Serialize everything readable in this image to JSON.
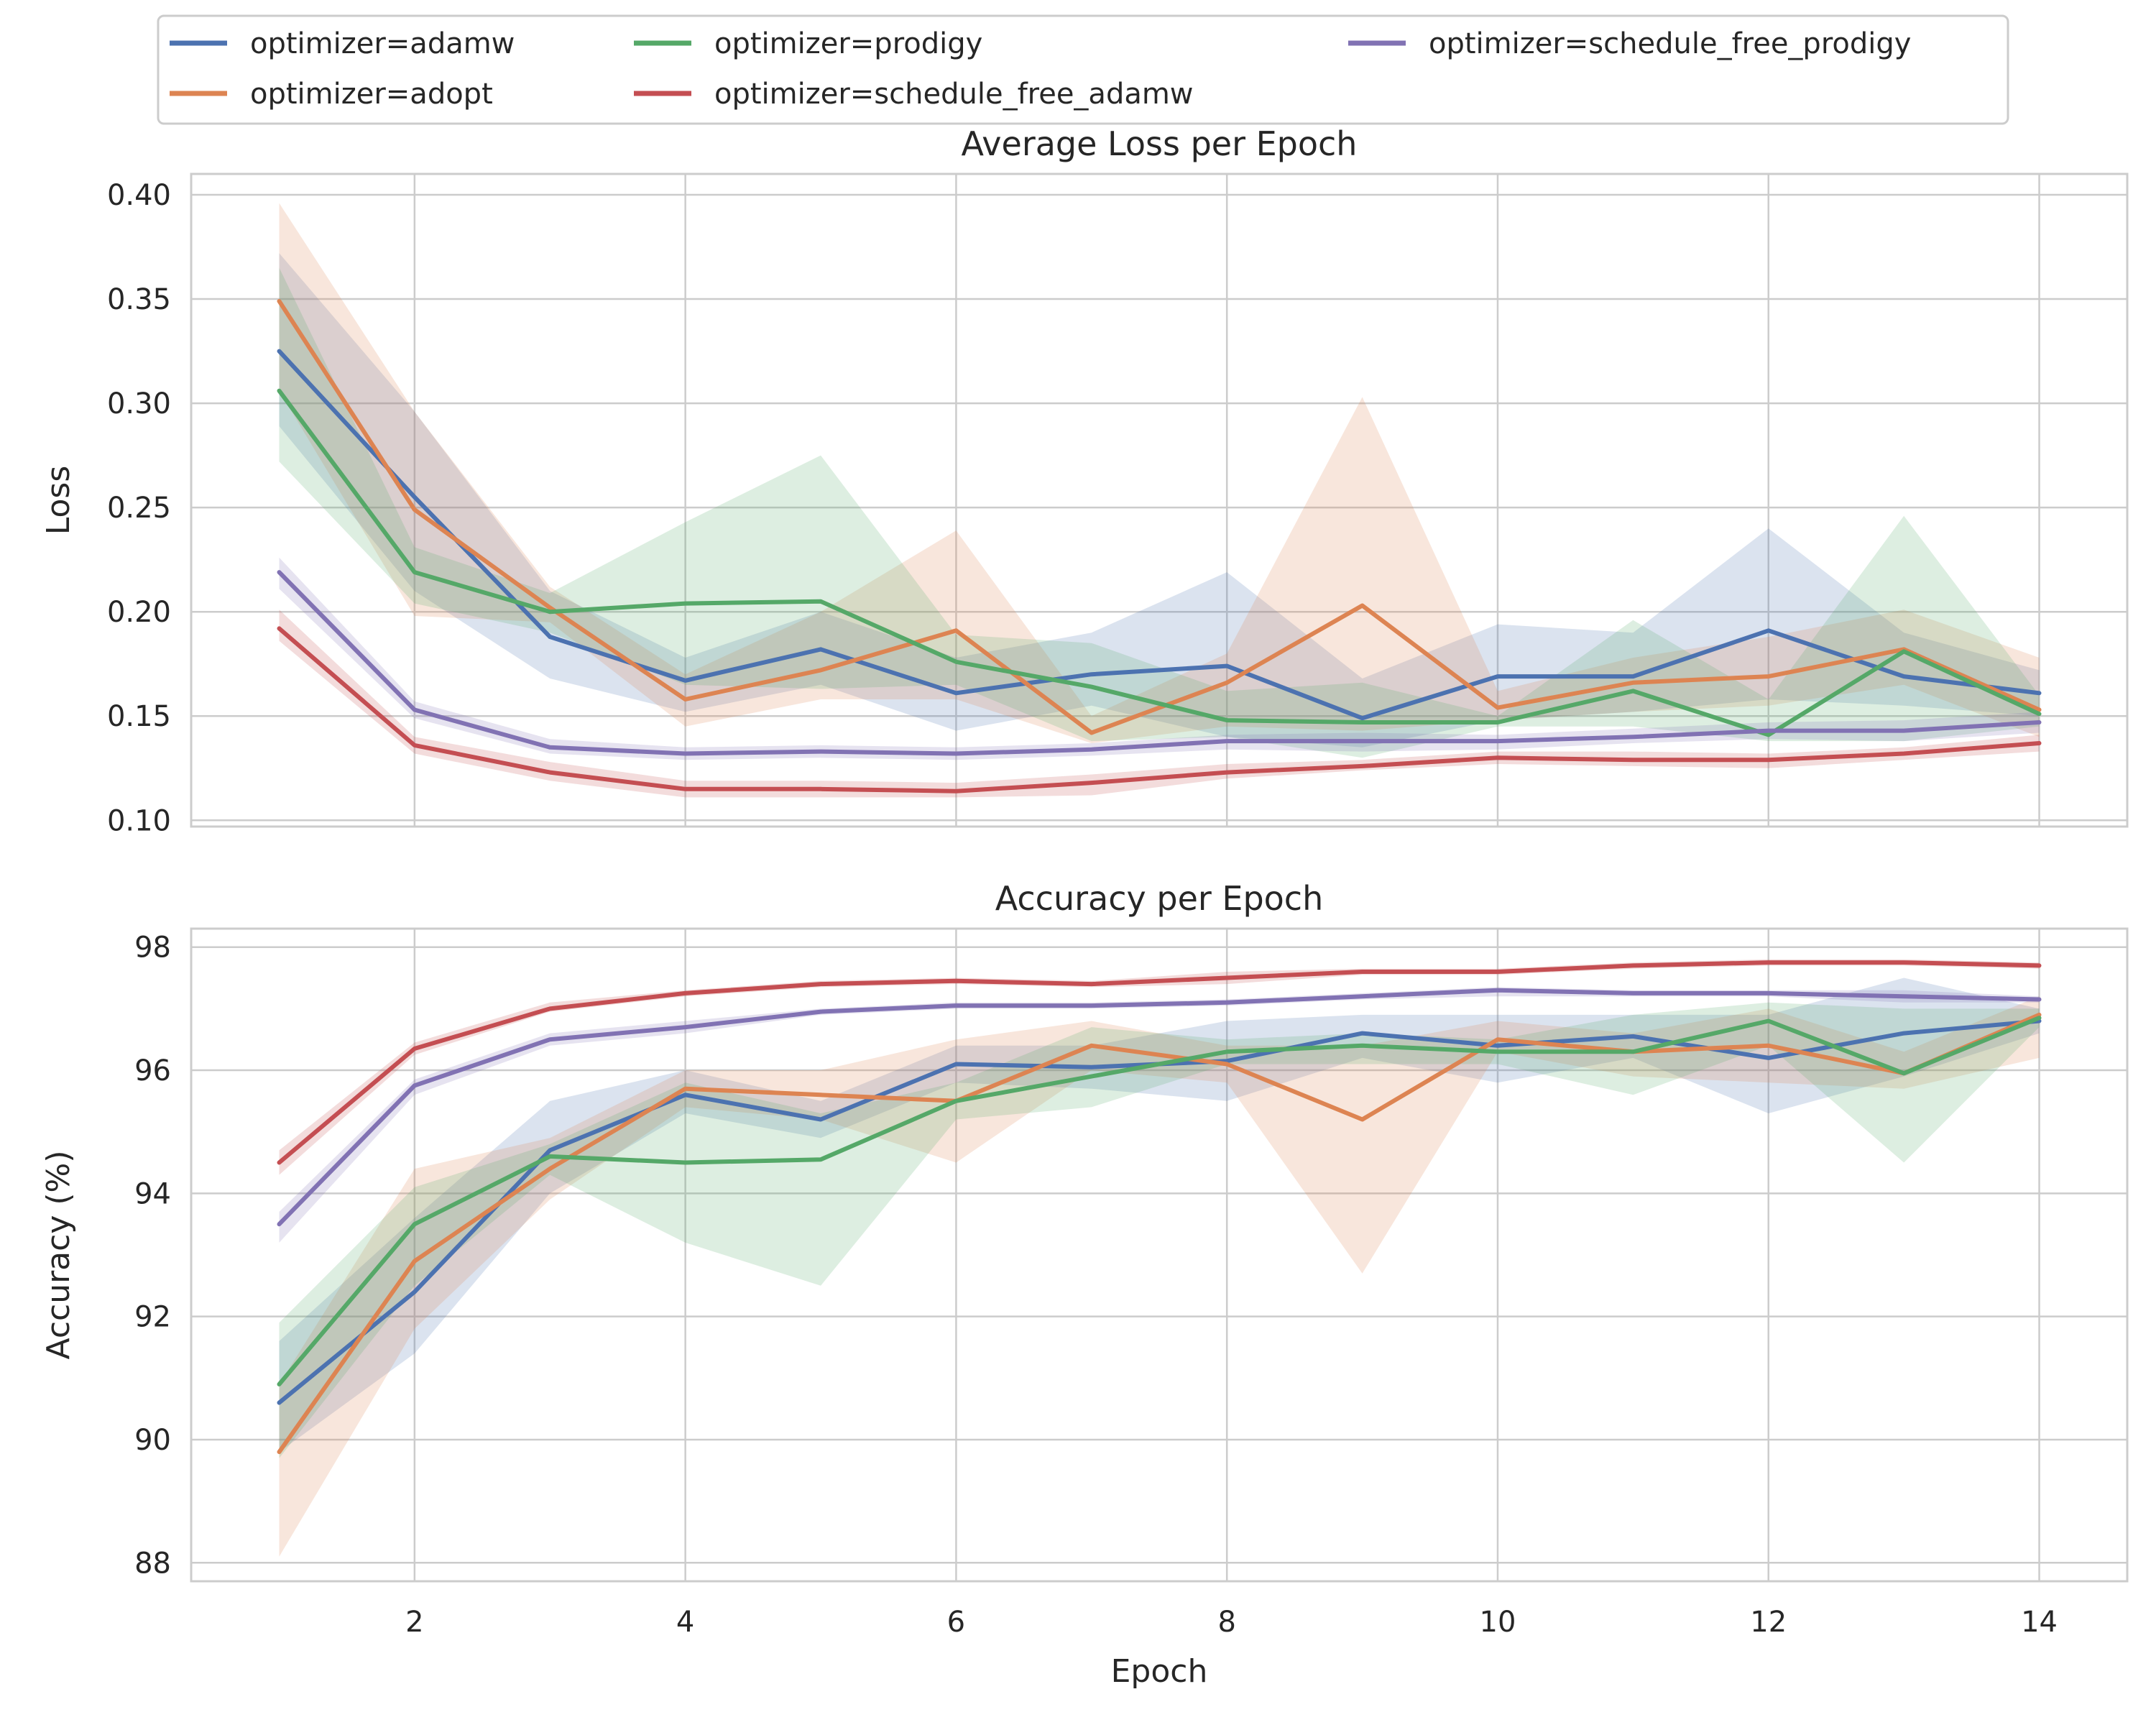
{
  "legend": {
    "placement": "top",
    "entries": [
      {
        "label": "optimizer=adamw",
        "color": "#4c72b0"
      },
      {
        "label": "optimizer=adopt",
        "color": "#dd8452"
      },
      {
        "label": "optimizer=prodigy",
        "color": "#55a868"
      },
      {
        "label": "optimizer=schedule_free_adamw",
        "color": "#c44e52"
      },
      {
        "label": "optimizer=schedule_free_prodigy",
        "color": "#8172b3"
      }
    ]
  },
  "chart_data": [
    {
      "type": "line",
      "title": "Average Loss per Epoch",
      "xlabel": "",
      "ylabel": "Loss",
      "xlim": [
        0.35,
        14.65
      ],
      "ylim": [
        0.097,
        0.41
      ],
      "xticks": [
        2,
        4,
        6,
        8,
        10,
        12,
        14
      ],
      "yticks": [
        0.1,
        0.15,
        0.2,
        0.25,
        0.3,
        0.35,
        0.4
      ],
      "ytick_labels": [
        "0.10",
        "0.15",
        "0.20",
        "0.25",
        "0.30",
        "0.35",
        "0.40"
      ],
      "grid": true,
      "x": [
        1,
        2,
        3,
        4,
        5,
        6,
        7,
        8,
        9,
        10,
        11,
        12,
        13,
        14
      ],
      "series": [
        {
          "name": "optimizer=adamw",
          "color": "#4c72b0",
          "values": [
            0.325,
            0.255,
            0.188,
            0.167,
            0.182,
            0.161,
            0.17,
            0.174,
            0.149,
            0.169,
            0.169,
            0.191,
            0.169,
            0.161
          ],
          "lower": [
            0.289,
            0.21,
            0.168,
            0.152,
            0.165,
            0.143,
            0.155,
            0.14,
            0.135,
            0.148,
            0.152,
            0.158,
            0.155,
            0.15
          ],
          "upper": [
            0.372,
            0.296,
            0.21,
            0.178,
            0.2,
            0.178,
            0.19,
            0.219,
            0.168,
            0.194,
            0.19,
            0.24,
            0.19,
            0.172
          ]
        },
        {
          "name": "optimizer=adopt",
          "color": "#dd8452",
          "values": [
            0.349,
            0.249,
            0.202,
            0.158,
            0.172,
            0.191,
            0.142,
            0.166,
            0.203,
            0.154,
            0.166,
            0.169,
            0.182,
            0.153
          ],
          "lower": [
            0.306,
            0.198,
            0.195,
            0.145,
            0.158,
            0.158,
            0.137,
            0.145,
            0.143,
            0.148,
            0.152,
            0.155,
            0.165,
            0.14
          ],
          "upper": [
            0.396,
            0.296,
            0.212,
            0.17,
            0.2,
            0.239,
            0.15,
            0.18,
            0.303,
            0.162,
            0.178,
            0.188,
            0.201,
            0.178
          ]
        },
        {
          "name": "optimizer=prodigy",
          "color": "#55a868",
          "values": [
            0.306,
            0.219,
            0.2,
            0.204,
            0.205,
            0.176,
            0.164,
            0.148,
            0.147,
            0.147,
            0.162,
            0.141,
            0.181,
            0.151
          ],
          "lower": [
            0.272,
            0.204,
            0.19,
            0.165,
            0.163,
            0.165,
            0.138,
            0.14,
            0.13,
            0.145,
            0.145,
            0.138,
            0.138,
            0.145
          ],
          "upper": [
            0.365,
            0.231,
            0.209,
            0.243,
            0.275,
            0.189,
            0.185,
            0.162,
            0.166,
            0.15,
            0.196,
            0.158,
            0.246,
            0.16
          ]
        },
        {
          "name": "optimizer=schedule_free_adamw",
          "color": "#c44e52",
          "values": [
            0.192,
            0.136,
            0.123,
            0.115,
            0.115,
            0.114,
            0.118,
            0.123,
            0.126,
            0.13,
            0.129,
            0.129,
            0.132,
            0.137
          ],
          "lower": [
            0.186,
            0.132,
            0.119,
            0.111,
            0.111,
            0.111,
            0.112,
            0.12,
            0.124,
            0.127,
            0.126,
            0.125,
            0.129,
            0.133
          ],
          "upper": [
            0.201,
            0.14,
            0.128,
            0.119,
            0.119,
            0.118,
            0.122,
            0.127,
            0.129,
            0.133,
            0.133,
            0.132,
            0.135,
            0.141
          ]
        },
        {
          "name": "optimizer=schedule_free_prodigy",
          "color": "#8172b3",
          "values": [
            0.219,
            0.153,
            0.135,
            0.132,
            0.133,
            0.132,
            0.134,
            0.138,
            0.138,
            0.138,
            0.14,
            0.143,
            0.143,
            0.147
          ],
          "lower": [
            0.211,
            0.149,
            0.132,
            0.129,
            0.13,
            0.129,
            0.131,
            0.134,
            0.133,
            0.134,
            0.137,
            0.139,
            0.138,
            0.142
          ],
          "upper": [
            0.226,
            0.157,
            0.139,
            0.135,
            0.136,
            0.135,
            0.137,
            0.141,
            0.142,
            0.141,
            0.144,
            0.147,
            0.148,
            0.152
          ]
        }
      ]
    },
    {
      "type": "line",
      "title": "Accuracy per Epoch",
      "xlabel": "Epoch",
      "ylabel": "Accuracy (%)",
      "xlim": [
        0.35,
        14.65
      ],
      "ylim": [
        87.7,
        98.3
      ],
      "xticks": [
        2,
        4,
        6,
        8,
        10,
        12,
        14
      ],
      "yticks": [
        88,
        90,
        92,
        94,
        96,
        98
      ],
      "ytick_labels": [
        "88",
        "90",
        "92",
        "94",
        "96",
        "98"
      ],
      "grid": true,
      "x": [
        1,
        2,
        3,
        4,
        5,
        6,
        7,
        8,
        9,
        10,
        11,
        12,
        13,
        14
      ],
      "series": [
        {
          "name": "optimizer=adamw",
          "color": "#4c72b0",
          "values": [
            90.6,
            92.4,
            94.7,
            95.6,
            95.2,
            96.1,
            96.05,
            96.15,
            96.6,
            96.4,
            96.55,
            96.2,
            96.6,
            96.8
          ],
          "lower": [
            89.8,
            91.4,
            94.0,
            95.3,
            94.9,
            95.8,
            95.7,
            95.5,
            96.2,
            95.8,
            96.2,
            95.3,
            95.9,
            96.6
          ],
          "upper": [
            91.6,
            93.6,
            95.5,
            96.0,
            95.5,
            96.4,
            96.4,
            96.8,
            96.9,
            96.9,
            96.9,
            96.9,
            97.5,
            97.0
          ]
        },
        {
          "name": "optimizer=adopt",
          "color": "#dd8452",
          "values": [
            89.8,
            92.9,
            94.4,
            95.7,
            95.6,
            95.5,
            96.4,
            96.1,
            95.2,
            96.5,
            96.3,
            96.4,
            95.95,
            96.9
          ],
          "lower": [
            88.1,
            91.8,
            93.9,
            95.4,
            95.2,
            94.5,
            96.0,
            95.8,
            92.7,
            96.3,
            95.9,
            95.8,
            95.7,
            96.2
          ],
          "upper": [
            90.9,
            94.4,
            94.9,
            96.0,
            96.0,
            96.5,
            96.8,
            96.4,
            96.4,
            96.8,
            96.6,
            97.0,
            96.3,
            97.2
          ]
        },
        {
          "name": "optimizer=prodigy",
          "color": "#55a868",
          "values": [
            90.9,
            93.5,
            94.6,
            94.5,
            94.55,
            95.5,
            95.9,
            96.3,
            96.4,
            96.3,
            96.3,
            96.8,
            95.95,
            96.85
          ],
          "lower": [
            89.7,
            92.5,
            94.3,
            93.2,
            92.5,
            95.2,
            95.4,
            96.1,
            96.1,
            96.1,
            95.6,
            96.4,
            94.5,
            96.7
          ],
          "upper": [
            91.9,
            94.1,
            94.8,
            95.8,
            95.3,
            95.8,
            96.7,
            96.5,
            96.6,
            96.5,
            96.9,
            97.1,
            97.0,
            97.0
          ]
        },
        {
          "name": "optimizer=schedule_free_adamw",
          "color": "#c44e52",
          "values": [
            94.5,
            96.35,
            97.0,
            97.25,
            97.4,
            97.45,
            97.4,
            97.5,
            97.6,
            97.6,
            97.7,
            97.75,
            97.75,
            97.7
          ],
          "lower": [
            94.3,
            96.25,
            96.95,
            97.2,
            97.35,
            97.4,
            97.35,
            97.4,
            97.55,
            97.55,
            97.65,
            97.7,
            97.7,
            97.65
          ],
          "upper": [
            94.7,
            96.45,
            97.1,
            97.3,
            97.45,
            97.5,
            97.45,
            97.6,
            97.65,
            97.65,
            97.75,
            97.8,
            97.8,
            97.75
          ]
        },
        {
          "name": "optimizer=schedule_free_prodigy",
          "color": "#8172b3",
          "values": [
            93.5,
            95.75,
            96.5,
            96.7,
            96.95,
            97.05,
            97.05,
            97.1,
            97.2,
            97.3,
            97.25,
            97.25,
            97.2,
            97.15
          ],
          "lower": [
            93.2,
            95.6,
            96.4,
            96.6,
            96.9,
            97.0,
            97.0,
            97.05,
            97.15,
            97.2,
            97.2,
            97.2,
            97.1,
            97.1
          ],
          "upper": [
            93.7,
            95.85,
            96.6,
            96.8,
            97.0,
            97.1,
            97.1,
            97.15,
            97.25,
            97.35,
            97.3,
            97.3,
            97.3,
            97.2
          ]
        }
      ]
    }
  ]
}
